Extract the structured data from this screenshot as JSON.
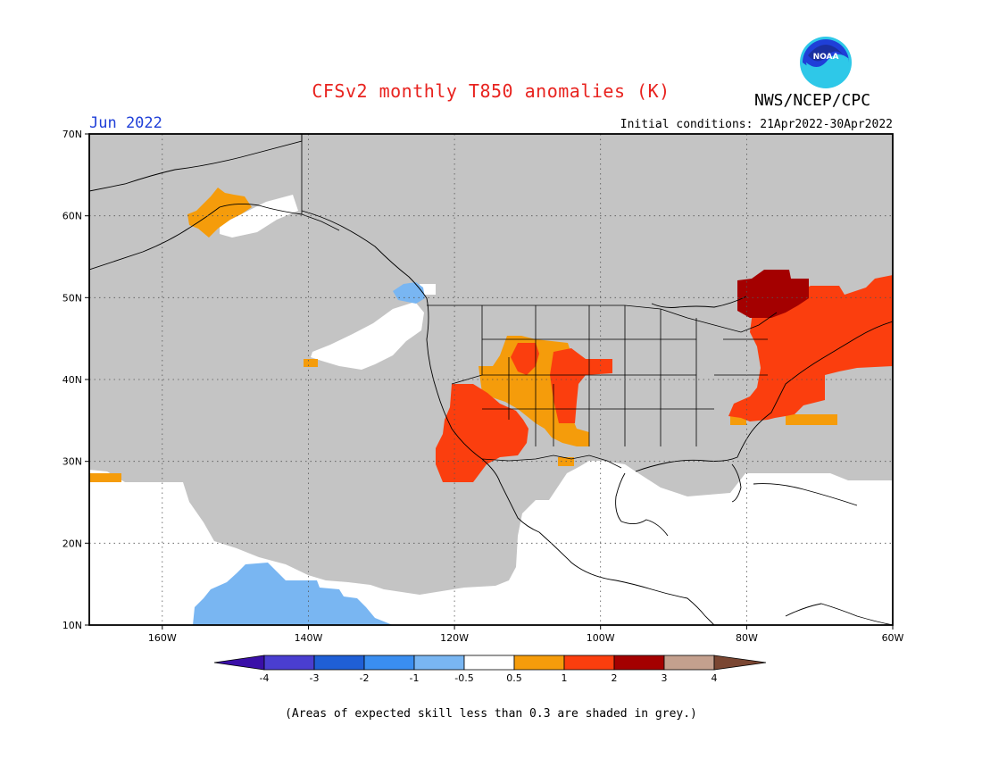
{
  "title": "CFSv2 monthly T850 anomalies (K)",
  "agency": "NWS/NCEP/CPC",
  "logo_text": "NOAA",
  "valid_month": "Jun 2022",
  "initial_conditions": "Initial conditions: 21Apr2022-30Apr2022",
  "footnote": "(Areas of expected skill less than 0.3 are shaded in grey.)",
  "lat_labels": [
    "70N",
    "60N",
    "50N",
    "40N",
    "30N",
    "20N",
    "10N"
  ],
  "lon_labels": [
    "160W",
    "140W",
    "120W",
    "100W",
    "80W",
    "60W"
  ],
  "colorbar": {
    "labels": [
      "-4",
      "-3",
      "-2",
      "-1",
      "-0.5",
      "0.5",
      "1",
      "2",
      "3",
      "4"
    ],
    "colors": [
      "#3a0fa8",
      "#4a3ed0",
      "#1f5fd6",
      "#3a8ef0",
      "#79b6f2",
      "#ffffff",
      "#f59c0b",
      "#fb3e0e",
      "#a40000",
      "#c4a08e",
      "#7a4632"
    ]
  },
  "map_colors": {
    "grey": "#c4c4c4",
    "lt_blue": "#79b6f2",
    "orange": "#f59c0b",
    "red_orange": "#fb3e0e",
    "dark_red": "#a40000",
    "logo_blue": "#1f3fd8"
  }
}
